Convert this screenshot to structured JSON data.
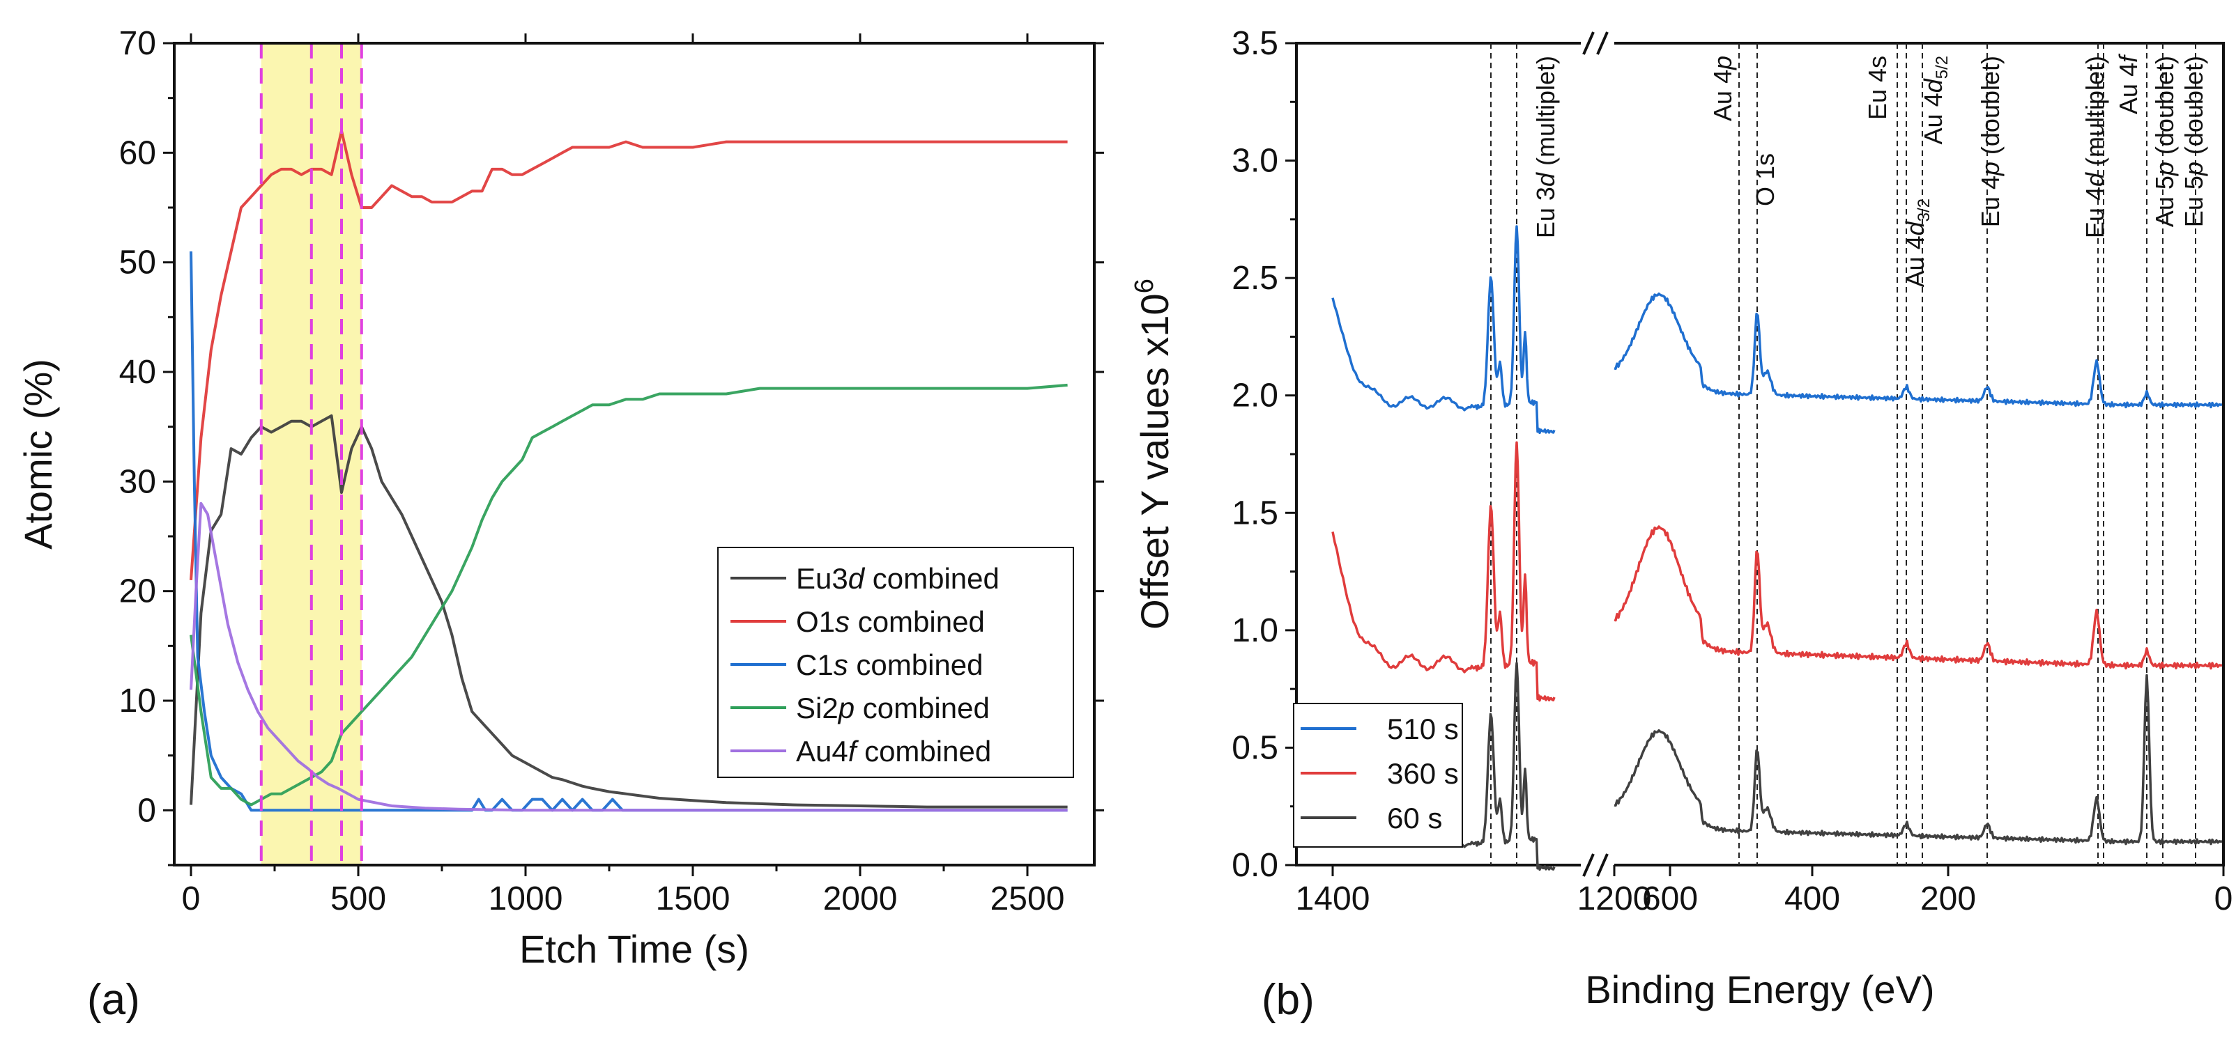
{
  "chart_data": [
    {
      "type": "line",
      "panel_label": "(a)",
      "xlabel": "Etch Time (s)",
      "ylabel": "Atomic (%)",
      "xlim": [
        -50,
        2700
      ],
      "ylim": [
        -5,
        70
      ],
      "xticks": [
        0,
        500,
        1000,
        1500,
        2000,
        2500
      ],
      "yticks": [
        0,
        10,
        20,
        30,
        40,
        50,
        60,
        70
      ],
      "highlight_region": {
        "x_start": 210,
        "x_end": 510,
        "color": "#fbf6b0"
      },
      "vlines_dashed": {
        "color": "#e040e0",
        "x": [
          210,
          360,
          450,
          510
        ]
      },
      "legend": {
        "position": "bottom-right"
      },
      "series": [
        {
          "name": "Eu3d combined",
          "label_pre": "Eu3",
          "label_em": "d",
          "label_post": " combined",
          "color": "#404040",
          "x": [
            0,
            30,
            60,
            90,
            120,
            150,
            180,
            210,
            240,
            270,
            300,
            330,
            360,
            390,
            420,
            450,
            480,
            510,
            540,
            570,
            600,
            630,
            660,
            690,
            720,
            750,
            780,
            810,
            840,
            870,
            900,
            930,
            960,
            990,
            1020,
            1050,
            1080,
            1110,
            1140,
            1170,
            1200,
            1250,
            1300,
            1350,
            1400,
            1500,
            1600,
            1700,
            1800,
            1900,
            2000,
            2100,
            2200,
            2300,
            2400,
            2500,
            2620
          ],
          "y": [
            0.5,
            18,
            25.5,
            27,
            33,
            32.5,
            34,
            35,
            34.5,
            35,
            35.5,
            35.5,
            35,
            35.5,
            36,
            29,
            33,
            35,
            33,
            30,
            28.5,
            27,
            25,
            23,
            21,
            19,
            16,
            12,
            9,
            8,
            7,
            6,
            5,
            4.5,
            4,
            3.5,
            3,
            2.8,
            2.5,
            2.2,
            2,
            1.7,
            1.5,
            1.3,
            1.1,
            0.9,
            0.7,
            0.6,
            0.5,
            0.45,
            0.4,
            0.35,
            0.3,
            0.3,
            0.3,
            0.3,
            0.3
          ]
        },
        {
          "name": "O1s combined",
          "label_pre": "O1",
          "label_em": "s",
          "label_post": " combined",
          "color": "#e03c3c",
          "x": [
            0,
            30,
            60,
            90,
            120,
            150,
            180,
            210,
            240,
            270,
            300,
            330,
            360,
            390,
            420,
            450,
            480,
            510,
            540,
            570,
            600,
            630,
            660,
            690,
            720,
            750,
            780,
            810,
            840,
            870,
            900,
            930,
            960,
            990,
            1020,
            1050,
            1080,
            1110,
            1140,
            1170,
            1200,
            1250,
            1300,
            1350,
            1400,
            1500,
            1600,
            1700,
            1800,
            1900,
            2000,
            2100,
            2200,
            2300,
            2400,
            2500,
            2620
          ],
          "y": [
            21,
            34,
            42,
            47,
            51,
            55,
            56,
            57,
            58,
            58.5,
            58.5,
            58,
            58.5,
            58.5,
            58,
            62,
            58,
            55,
            55,
            56,
            57,
            56.5,
            56,
            56,
            55.5,
            55.5,
            55.5,
            56,
            56.5,
            56.5,
            58.5,
            58.5,
            58,
            58,
            58.5,
            59,
            59.5,
            60,
            60.5,
            60.5,
            60.5,
            60.5,
            61,
            60.5,
            60.5,
            60.5,
            61,
            61,
            61,
            61,
            61,
            61,
            61,
            61,
            61,
            61,
            61
          ]
        },
        {
          "name": "C1s combined",
          "label_pre": "C1",
          "label_em": "s",
          "label_post": " combined",
          "color": "#1f6fd0",
          "x": [
            0,
            10,
            20,
            40,
            60,
            90,
            120,
            150,
            180,
            210,
            500,
            840,
            860,
            880,
            900,
            930,
            960,
            990,
            1020,
            1050,
            1080,
            1110,
            1140,
            1170,
            1200,
            1230,
            1260,
            1290,
            1320,
            2620
          ],
          "y": [
            51,
            30,
            14,
            9,
            5,
            3,
            2,
            1.5,
            0,
            0,
            0,
            0,
            1,
            0,
            0,
            1,
            0,
            0,
            1,
            1,
            0,
            1,
            0,
            1,
            0,
            0,
            1,
            0,
            0,
            0
          ]
        },
        {
          "name": "Si2p combined",
          "label_pre": "Si2",
          "label_em": "p",
          "label_post": " combined",
          "color": "#2fa05a",
          "x": [
            0,
            30,
            60,
            90,
            120,
            150,
            180,
            210,
            240,
            270,
            300,
            330,
            360,
            390,
            420,
            450,
            480,
            510,
            540,
            570,
            600,
            630,
            660,
            690,
            720,
            750,
            780,
            810,
            840,
            870,
            900,
            930,
            960,
            990,
            1020,
            1050,
            1080,
            1110,
            1140,
            1170,
            1200,
            1250,
            1300,
            1350,
            1400,
            1500,
            1600,
            1700,
            1800,
            1900,
            2000,
            2100,
            2200,
            2300,
            2400,
            2500,
            2620
          ],
          "y": [
            16,
            9,
            3,
            2,
            2,
            1,
            0.5,
            1,
            1.5,
            1.5,
            2,
            2.5,
            3,
            3.5,
            4.5,
            7,
            8,
            9,
            10,
            11,
            12,
            13,
            14,
            15.5,
            17,
            18.5,
            20,
            22,
            24,
            26.5,
            28.5,
            30,
            31,
            32,
            34,
            34.5,
            35,
            35.5,
            36,
            36.5,
            37,
            37,
            37.5,
            37.5,
            38,
            38,
            38,
            38.5,
            38.5,
            38.5,
            38.5,
            38.5,
            38.5,
            38.5,
            38.5,
            38.5,
            38.8
          ]
        },
        {
          "name": "Au4f combined",
          "label_pre": "Au4",
          "label_em": "f",
          "label_post": " combined",
          "color": "#a070e0",
          "x": [
            0,
            15,
            30,
            50,
            80,
            110,
            140,
            170,
            200,
            230,
            260,
            290,
            320,
            350,
            380,
            410,
            440,
            470,
            500,
            550,
            600,
            700,
            800,
            1000,
            1500,
            2000,
            2620
          ],
          "y": [
            11,
            20,
            28,
            27,
            22,
            17,
            13.5,
            11,
            9,
            7.5,
            6.5,
            5.5,
            4.5,
            3.8,
            3,
            2.4,
            2,
            1.5,
            1,
            0.7,
            0.4,
            0.2,
            0.1,
            0,
            0,
            0,
            0
          ]
        }
      ]
    },
    {
      "type": "line",
      "panel_label": "(b)",
      "xlabel": "Binding Energy (eV)",
      "ylabel_main": "Offset Y values x10",
      "ylabel_sup": "6",
      "x_reversed": true,
      "xbreak": "//",
      "ylim": [
        0.0,
        3.5
      ],
      "yticks": [
        "0.0",
        "0.5",
        "1.0",
        "1.5",
        "2.0",
        "2.5",
        "3.0",
        "3.5"
      ],
      "xticks": [
        "1400",
        "1200",
        "600",
        "400",
        "200",
        "0"
      ],
      "legend": {
        "position": "bottom-left"
      },
      "series": [
        {
          "name": "510 s",
          "color": "#1f6fd0"
        },
        {
          "name": "360 s",
          "color": "#e03c3c"
        },
        {
          "name": "60 s",
          "color": "#404040"
        }
      ],
      "annotations": [
        {
          "label": "Eu 3",
          "em": "d",
          "post": " (multiplet)"
        },
        {
          "label": "Au 4",
          "em": "p",
          "post": ""
        },
        {
          "label": "O 1s",
          "em": "",
          "post": ""
        },
        {
          "label": "Eu 4s",
          "em": "",
          "post": ""
        },
        {
          "label": "Au 4",
          "em": "d",
          "sub": "3/2",
          "post": ""
        },
        {
          "label": "Au 4",
          "em": "d",
          "sub": "5/2",
          "post": ""
        },
        {
          "label": "Eu 4",
          "em": "p",
          "post": " (doublet)"
        },
        {
          "label": "Eu 4",
          "em": "d",
          "post": " (multiplet)"
        },
        {
          "label": "Au 4",
          "em": "f",
          "post": ""
        },
        {
          "label": "Au 5",
          "em": "p",
          "post": " (doublet)"
        },
        {
          "label": "Eu 5",
          "em": "p",
          "post": " (doublet)"
        }
      ]
    }
  ]
}
